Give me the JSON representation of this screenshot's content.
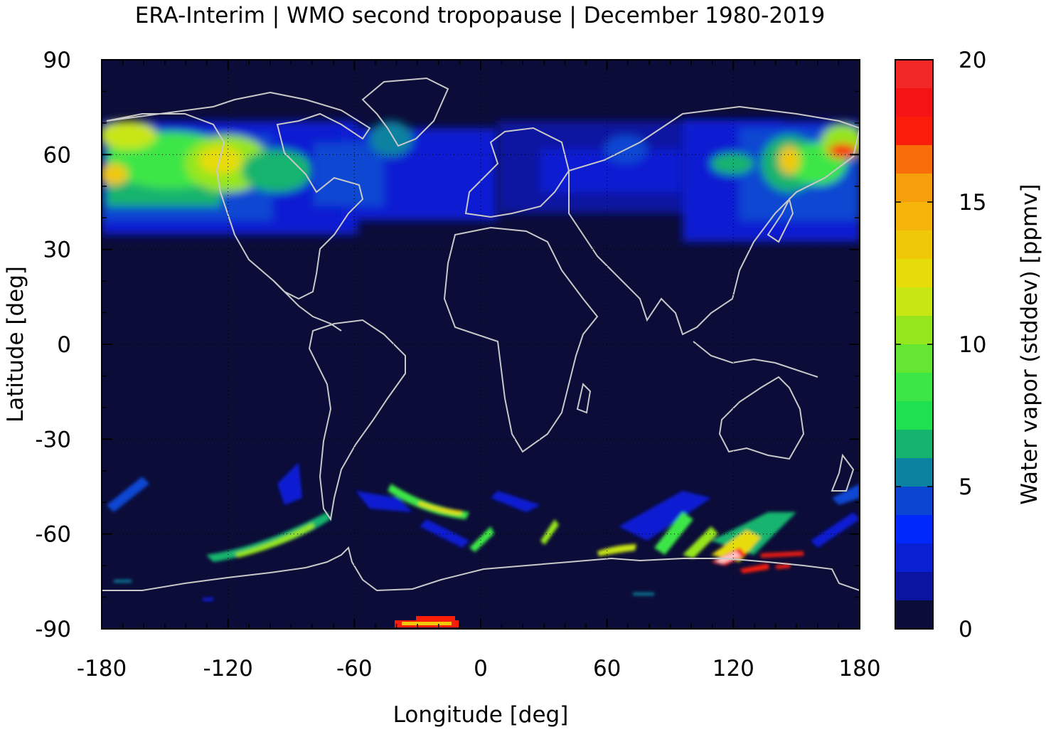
{
  "chart_data": {
    "type": "heatmap",
    "title": "ERA-Interim | WMO second tropopause | December 1980-2019",
    "xlabel": "Longitude [deg]",
    "ylabel": "Latitude [deg]",
    "xlim": [
      -180,
      180
    ],
    "ylim": [
      -90,
      90
    ],
    "x_ticks": [
      "-180",
      "-120",
      "-60",
      "0",
      "60",
      "120",
      "180"
    ],
    "y_ticks": [
      "90",
      "60",
      "30",
      "0",
      "-30",
      "-60",
      "-90"
    ],
    "grid": true,
    "colorbar": {
      "label": "Water vapor (stddev) [ppmv]",
      "range": [
        0,
        20
      ],
      "ticks": [
        "0",
        "5",
        "10",
        "15",
        "20"
      ],
      "levels": [
        0,
        1,
        2,
        3,
        4,
        5,
        6,
        7,
        8,
        9,
        10,
        11,
        12,
        13,
        14,
        15,
        16,
        17,
        18,
        19,
        20
      ],
      "colors": [
        "#0b0c38",
        "#0a14a0",
        "#0a1ed2",
        "#0028fa",
        "#0a46d2",
        "#0a82a0",
        "#14b46e",
        "#1ee050",
        "#3ce646",
        "#64e632",
        "#96e61e",
        "#c8e614",
        "#e6dc0a",
        "#f0c80a",
        "#f5b40a",
        "#f5a00a",
        "#fa6e0a",
        "#fa1e0a",
        "#f51414",
        "#f02828",
        "#f03232",
        "#f07878",
        "#ffc8c8"
      ]
    },
    "background_color": "#0b0c38",
    "coastline_color": "#c8c8c8",
    "features": [
      {
        "name": "north-america-pacific-band",
        "lon": [
          -180,
          -80
        ],
        "lat": [
          38,
          72
        ],
        "level_max": 12
      },
      {
        "name": "north-atlantic-band",
        "lon": [
          -80,
          0
        ],
        "lat": [
          38,
          68
        ],
        "level_max": 5
      },
      {
        "name": "eurasia-band",
        "lon": [
          0,
          100
        ],
        "lat": [
          40,
          72
        ],
        "level_max": 4
      },
      {
        "name": "east-asia-pacific-band",
        "lon": [
          100,
          180
        ],
        "lat": [
          35,
          70
        ],
        "level_max": 17
      },
      {
        "name": "southern-ocean-streaks",
        "lon": [
          -180,
          180
        ],
        "lat": [
          -75,
          -45
        ],
        "level_max": 20
      },
      {
        "name": "antarctic-plateau-spot",
        "lon": [
          -43,
          -13
        ],
        "lat": [
          -89,
          -87
        ],
        "level_max": 17
      }
    ]
  }
}
